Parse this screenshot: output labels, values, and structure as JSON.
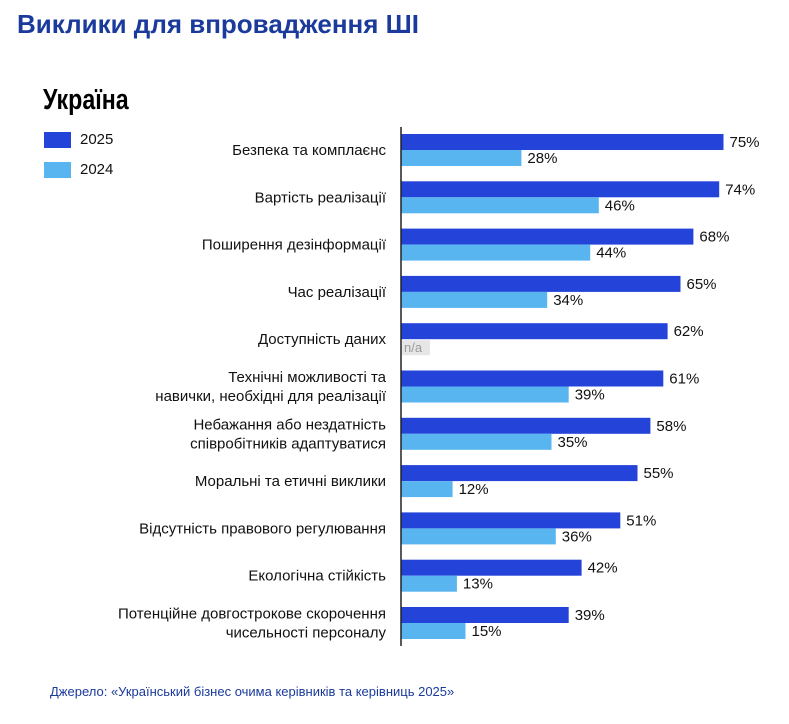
{
  "title": "Виклики для впровадження ШІ",
  "region": "Україна",
  "colors": {
    "s2025": "#2443d9",
    "s2024": "#59b5f0",
    "title": "#1a3a9c",
    "na_bg": "#e6e6e6"
  },
  "legend": [
    {
      "name": "2025",
      "color": "#2443d9"
    },
    {
      "name": "2024",
      "color": "#59b5f0"
    }
  ],
  "chart_data": {
    "type": "bar",
    "orientation": "horizontal",
    "categories": [
      [
        "Безпека та комплаєнс"
      ],
      [
        "Вартість реалізації"
      ],
      [
        "Поширення дезінформації"
      ],
      [
        "Час реалізації"
      ],
      [
        "Доступність даних"
      ],
      [
        "Технічні можливості та",
        "навички, необхідні для реалізації"
      ],
      [
        "Небажання або нездатність",
        "співробітників адаптуватися"
      ],
      [
        "Моральні та етичні виклики"
      ],
      [
        "Відсутність правового регулювання"
      ],
      [
        "Екологічна стійкість"
      ],
      [
        "Потенційне довгострокове скорочення",
        "чисельності персоналу"
      ]
    ],
    "series": [
      {
        "name": "2025",
        "values": [
          75,
          74,
          68,
          65,
          62,
          61,
          58,
          55,
          51,
          42,
          39
        ],
        "labels": [
          "75%",
          "74%",
          "68%",
          "65%",
          "62%",
          "61%",
          "58%",
          "55%",
          "51%",
          "42%",
          "39%"
        ]
      },
      {
        "name": "2024",
        "values": [
          28,
          46,
          44,
          34,
          null,
          39,
          35,
          12,
          36,
          13,
          15
        ],
        "labels": [
          "28%",
          "46%",
          "44%",
          "34%",
          "n/a",
          "39%",
          "35%",
          "12%",
          "36%",
          "13%",
          "15%"
        ]
      }
    ],
    "xlim": [
      0,
      100
    ],
    "unit": "%"
  },
  "source": "Джерело: «Український бізнес очима керівників та керівниць 2025»"
}
